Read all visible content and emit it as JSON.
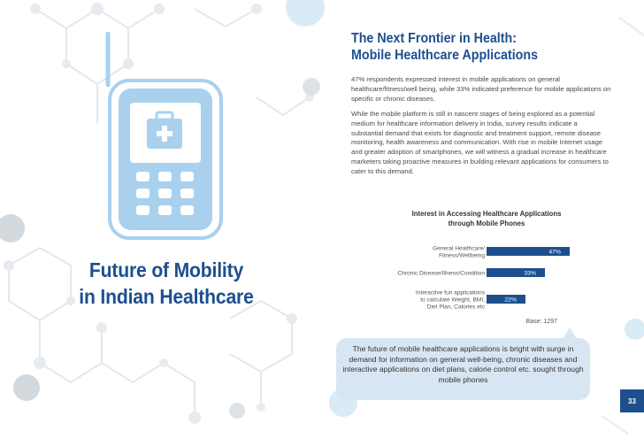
{
  "left_page": {
    "title_line1": "Future of Mobility",
    "title_line2": "in Indian Healthcare"
  },
  "right_page": {
    "heading_line1": "The Next Frontier in Health:",
    "heading_line2": "Mobile Healthcare Applications",
    "paragraph1": "47% respondents expressed interest in mobile applications on general healthcare/fitness/well being, while 33% indicated preference for mobile applications on specific or chronic diseases.",
    "paragraph2": "While the mobile platform is still in nascent stages of being explored as a potential medium for healthcare information delivery in India, survey results indicate a substantial demand that exists for diagnostic and treatment support, remote disease monitoring, health awareness and communication. With rise in mobile Internet usage and greater adoption of smartphones, we will witness a gradual increase in healthcare marketers taking proactive measures in building relevant applications for consumers to cater to this demand.",
    "callout": "The future of mobile healthcare applications is bright with surge in demand for information on general well-being, chronic diseases and interactive applications on diet plans, calorie control etc. sought through mobile phones",
    "page_number": "33"
  },
  "chart_data": {
    "type": "bar",
    "orientation": "horizontal",
    "title_line1": "Interest in Accessing Healthcare Applications",
    "title_line2": "through Mobile Phones",
    "categories": [
      [
        "General Healthcare/",
        "Fitness/Wellbeing"
      ],
      [
        "Chronic Disease/Illness/Condition"
      ],
      [
        "Interactive fun applications",
        "to calculate Weight, BMI,",
        "Diet Plan, Calories etc"
      ]
    ],
    "values": [
      47,
      33,
      22
    ],
    "value_labels": [
      "47%",
      "33%",
      "22%"
    ],
    "base_note": "Base: 1297",
    "bar_color": "#1d4f8f",
    "xlim": [
      0,
      50
    ]
  },
  "colors": {
    "brand_blue": "#1d4f8f",
    "light_blue": "#d8e6f3",
    "phone_blue": "#a9d1ee"
  },
  "icons": [
    "mobile-phone-icon",
    "medical-kit-icon"
  ]
}
